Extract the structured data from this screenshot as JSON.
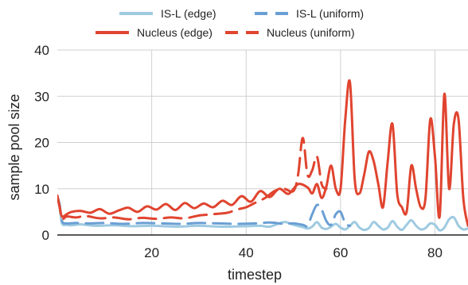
{
  "chart_data": {
    "type": "line",
    "title": "",
    "xlabel": "timestep",
    "ylabel": "sample pool size",
    "xlim": [
      0,
      87
    ],
    "ylim": [
      0,
      40
    ],
    "xticks": [
      20,
      40,
      60,
      80
    ],
    "yticks": [
      0,
      10,
      20,
      30,
      40
    ],
    "grid": true,
    "legend_position": "top",
    "series": [
      {
        "name": "IS-L (edge)",
        "color": "#9ecae1",
        "style": "solid",
        "width": 3,
        "x": [
          0,
          0.5,
          1,
          2,
          3,
          5,
          8,
          12,
          16,
          20,
          25,
          30,
          35,
          40,
          43,
          45,
          48,
          50,
          52,
          53,
          54,
          55,
          56,
          57,
          58,
          59,
          60,
          61,
          62,
          63,
          64,
          65,
          66,
          67,
          68,
          69,
          70,
          71,
          72,
          73,
          74,
          75,
          76,
          77,
          78,
          79,
          80,
          81,
          82,
          83,
          84,
          85,
          86,
          87
        ],
        "y": [
          8.5,
          6,
          2.5,
          2.2,
          2.1,
          2.3,
          2,
          2.1,
          1.9,
          2,
          1.8,
          2,
          1.8,
          1.9,
          2,
          1.8,
          2.8,
          2.2,
          1.7,
          1.4,
          1.8,
          2.8,
          1.6,
          1.3,
          1.8,
          2.4,
          1.6,
          1.2,
          2,
          2.8,
          1.6,
          1.1,
          1.5,
          2.8,
          2,
          1.2,
          1.6,
          3,
          1.8,
          1.1,
          2.2,
          3.2,
          2,
          1.2,
          1.5,
          2.5,
          2.2,
          1,
          1.6,
          3.4,
          3.8,
          2,
          1.2,
          1.4
        ]
      },
      {
        "name": "IS-L (uniform)",
        "color": "#6a9fd4",
        "style": "dashed",
        "width": 3,
        "x": [
          0,
          0.5,
          1,
          2,
          4,
          7,
          10,
          14,
          18,
          22,
          26,
          30,
          34,
          38,
          42,
          45,
          48,
          50,
          52,
          53,
          54,
          55,
          56,
          57,
          58,
          59,
          60,
          61,
          62
        ],
        "y": [
          8.5,
          6.5,
          3,
          2.5,
          2.6,
          2.5,
          2.6,
          2.4,
          2.6,
          2.5,
          2.4,
          2.6,
          2.5,
          2.4,
          2.5,
          2.7,
          2.4,
          2.5,
          2.2,
          2,
          4.5,
          6.5,
          5.5,
          3,
          2.2,
          4.5,
          5,
          2.5,
          2
        ]
      },
      {
        "name": "Nucleus (edge)",
        "color": "#e0442f",
        "style": "solid",
        "width": 3,
        "x": [
          0,
          0.5,
          1,
          2,
          3,
          5,
          7,
          9,
          11,
          13,
          15,
          17,
          19,
          21,
          23,
          25,
          27,
          29,
          31,
          33,
          35,
          37,
          39,
          41,
          43,
          45,
          47,
          49,
          51,
          53,
          54,
          55,
          56,
          57,
          58,
          59,
          60,
          61,
          62,
          63,
          64,
          65,
          66,
          67,
          68,
          69,
          70,
          71,
          72,
          73,
          74,
          75,
          76,
          77,
          78,
          79,
          80,
          81,
          82,
          83,
          84,
          85,
          86,
          87
        ],
        "y": [
          8.5,
          6,
          4,
          4.5,
          5,
          5.2,
          4.8,
          5.6,
          4.6,
          5.3,
          5.9,
          5,
          6.2,
          5.5,
          6.7,
          5.4,
          6.9,
          5.8,
          6.8,
          6,
          7.4,
          6.5,
          8.4,
          7.2,
          9.5,
          8.2,
          10,
          8.9,
          11,
          10.3,
          9,
          11,
          8,
          10.5,
          15,
          10,
          10,
          25,
          33,
          12,
          9,
          13,
          18,
          16,
          11,
          6,
          16,
          24,
          9,
          6,
          5,
          15,
          10,
          6,
          8,
          25,
          17,
          4,
          30.5,
          10,
          24,
          25,
          8,
          2
        ]
      },
      {
        "name": "Nucleus (uniform)",
        "color": "#e0442f",
        "style": "dashed",
        "width": 3,
        "x": [
          0,
          0.5,
          1,
          2,
          4,
          6,
          9,
          12,
          15,
          18,
          21,
          24,
          27,
          30,
          33,
          36,
          38,
          40,
          42,
          44,
          46,
          48,
          50,
          51,
          52,
          53,
          54,
          55,
          56,
          57
        ],
        "y": [
          8.5,
          6,
          3.5,
          4,
          3.8,
          4.1,
          3.6,
          3.8,
          3.4,
          3.7,
          3.5,
          3.8,
          3.6,
          4.2,
          4.5,
          4.8,
          5.5,
          6,
          7,
          8,
          9.5,
          10,
          9.5,
          13,
          21,
          13,
          14,
          17,
          11,
          10
        ]
      }
    ]
  }
}
